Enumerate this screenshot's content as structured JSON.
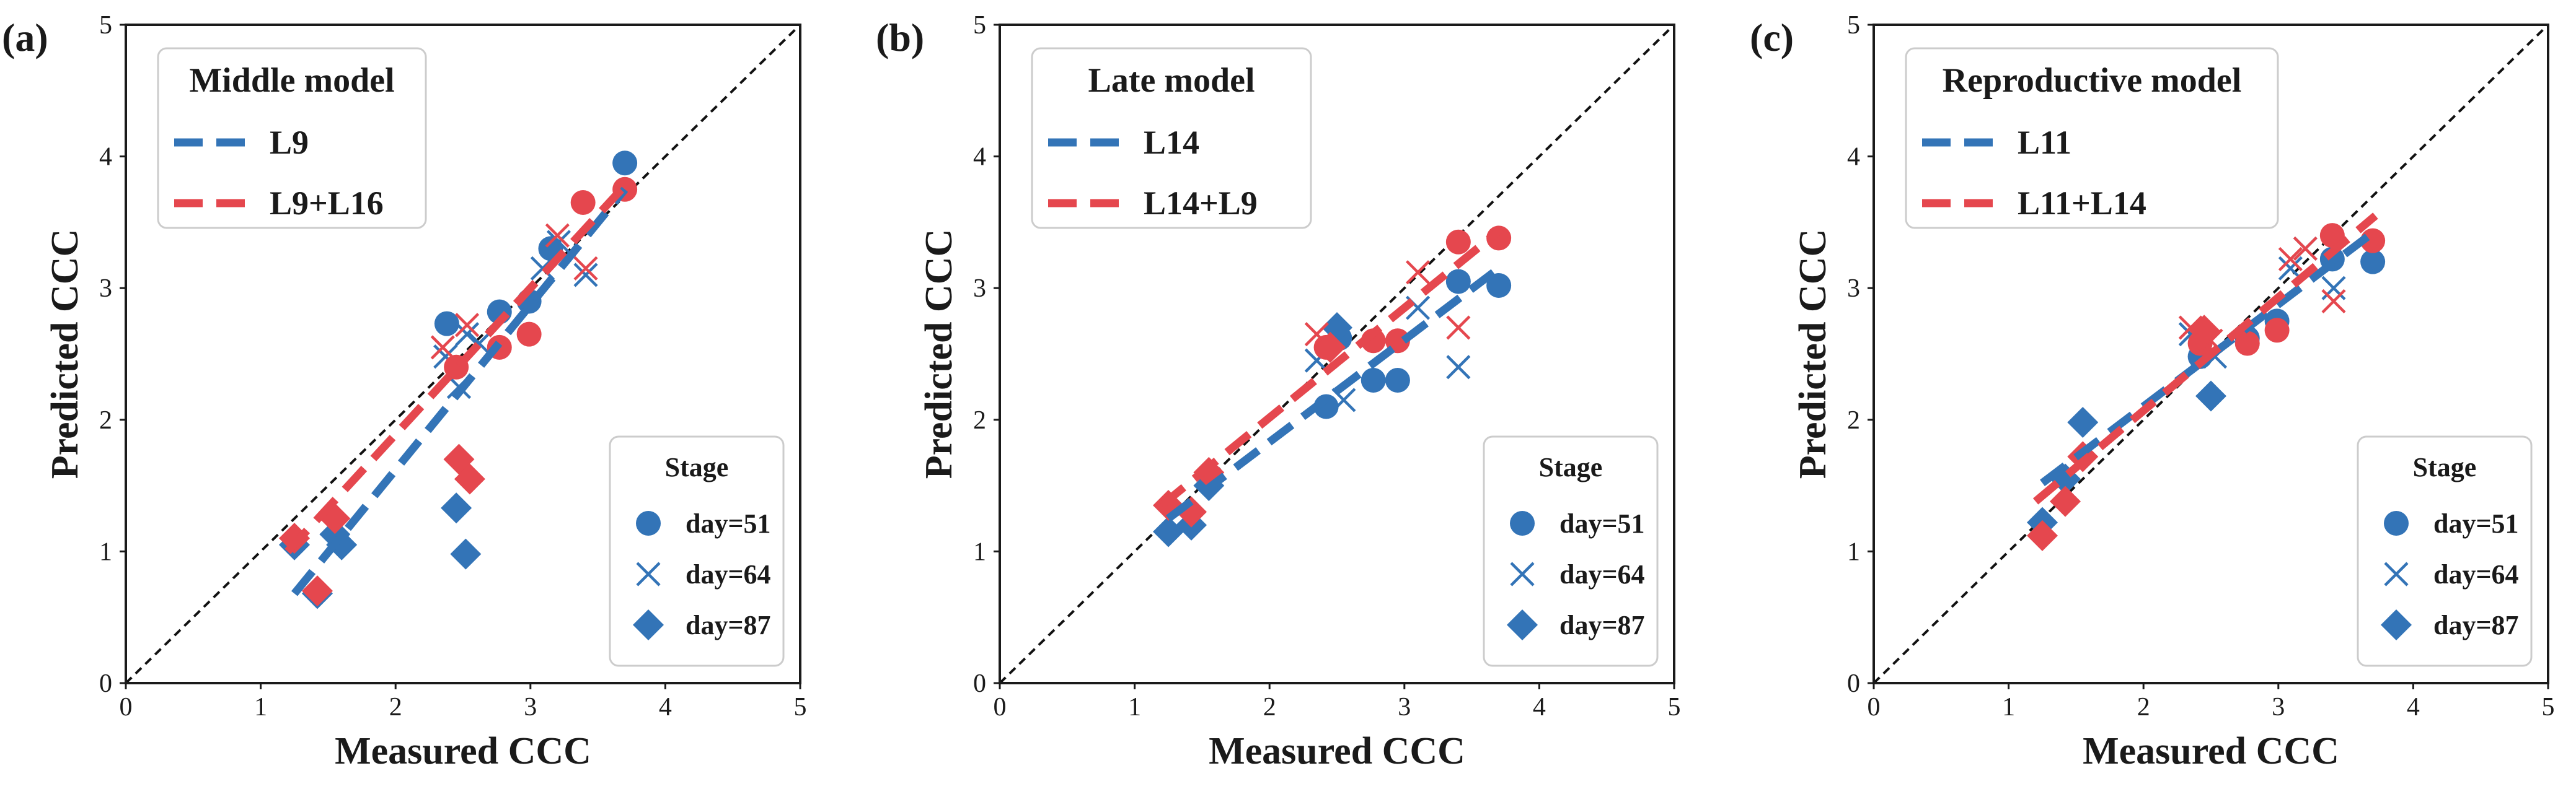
{
  "figure": {
    "colors": {
      "blue": "#3374b7",
      "red": "#e5474e",
      "identity": "#111111"
    },
    "stage_legend": {
      "title": "Stage",
      "entries": [
        "day=51",
        "day=64",
        "day=87"
      ]
    }
  },
  "chart_data": [
    {
      "type": "scatter",
      "panel_label": "(a)",
      "legend_title": "Middle model",
      "xlabel": "Measured CCC",
      "ylabel": "Predicted CCC",
      "xlim": [
        0,
        5
      ],
      "ylim": [
        0,
        5
      ],
      "xticks": [
        "0",
        "1",
        "2",
        "3",
        "4",
        "5"
      ],
      "yticks": [
        "0",
        "1",
        "2",
        "3",
        "4",
        "5"
      ],
      "identity_line": true,
      "series": [
        {
          "name": "L9",
          "color": "#3374b7",
          "fit_line": [
            [
              1.25,
              0.68
            ],
            [
              3.7,
              3.75
            ]
          ],
          "points": {
            "day=51": [
              [
                2.38,
                2.73
              ],
              [
                2.77,
                2.82
              ],
              [
                2.99,
                2.9
              ],
              [
                3.15,
                3.3
              ],
              [
                3.7,
                3.95
              ]
            ],
            "day=64": [
              [
                2.37,
                2.48
              ],
              [
                2.47,
                2.25
              ],
              [
                2.53,
                2.65
              ],
              [
                2.62,
                2.58
              ],
              [
                3.09,
                3.15
              ],
              [
                3.21,
                3.35
              ],
              [
                3.41,
                3.1
              ]
            ],
            "day=87": [
              [
                1.25,
                1.05
              ],
              [
                1.42,
                0.68
              ],
              [
                1.55,
                1.13
              ],
              [
                1.6,
                1.05
              ],
              [
                2.45,
                1.33
              ],
              [
                2.52,
                0.98
              ]
            ]
          }
        },
        {
          "name": "L9+L16",
          "color": "#e5474e",
          "fit_line": [
            [
              1.2,
              1.0
            ],
            [
              3.72,
              3.8
            ]
          ],
          "points": {
            "day=51": [
              [
                2.45,
                2.4
              ],
              [
                2.77,
                2.55
              ],
              [
                2.99,
                2.65
              ],
              [
                3.39,
                3.65
              ],
              [
                3.7,
                3.75
              ]
            ],
            "day=64": [
              [
                2.35,
                2.55
              ],
              [
                2.53,
                2.72
              ],
              [
                3.2,
                3.4
              ],
              [
                3.41,
                3.15
              ]
            ],
            "day=87": [
              [
                1.25,
                1.1
              ],
              [
                1.42,
                0.7
              ],
              [
                1.55,
                1.25
              ],
              [
                2.47,
                1.7
              ],
              [
                2.55,
                1.55
              ]
            ]
          }
        }
      ]
    },
    {
      "type": "scatter",
      "panel_label": "(b)",
      "legend_title": "Late model",
      "xlabel": "Measured CCC",
      "ylabel": "Predicted CCC",
      "xlim": [
        0,
        5
      ],
      "ylim": [
        0,
        5
      ],
      "xticks": [
        "0",
        "1",
        "2",
        "3",
        "4",
        "5"
      ],
      "yticks": [
        "0",
        "1",
        "2",
        "3",
        "4",
        "5"
      ],
      "identity_line": true,
      "series": [
        {
          "name": "L14",
          "color": "#3374b7",
          "fit_line": [
            [
              1.25,
              1.25
            ],
            [
              3.7,
              3.15
            ]
          ],
          "points": {
            "day=51": [
              [
                2.42,
                2.1
              ],
              [
                2.52,
                2.62
              ],
              [
                2.77,
                2.3
              ],
              [
                2.95,
                2.3
              ],
              [
                3.4,
                3.05
              ],
              [
                3.7,
                3.02
              ]
            ],
            "day=64": [
              [
                2.35,
                2.45
              ],
              [
                2.55,
                2.15
              ],
              [
                3.1,
                2.85
              ],
              [
                3.4,
                2.4
              ]
            ],
            "day=87": [
              [
                1.25,
                1.15
              ],
              [
                1.42,
                1.2
              ],
              [
                1.55,
                1.5
              ],
              [
                2.5,
                2.7
              ]
            ]
          }
        },
        {
          "name": "L14+L9",
          "color": "#e5474e",
          "fit_line": [
            [
              1.2,
              1.35
            ],
            [
              3.72,
              3.45
            ]
          ],
          "points": {
            "day=51": [
              [
                2.42,
                2.55
              ],
              [
                2.77,
                2.6
              ],
              [
                2.95,
                2.6
              ],
              [
                3.4,
                3.35
              ],
              [
                3.7,
                3.38
              ]
            ],
            "day=64": [
              [
                2.35,
                2.65
              ],
              [
                3.1,
                3.12
              ],
              [
                3.4,
                2.7
              ]
            ],
            "day=87": [
              [
                1.25,
                1.35
              ],
              [
                1.42,
                1.3
              ],
              [
                1.55,
                1.6
              ],
              [
                2.45,
                2.55
              ]
            ]
          }
        }
      ]
    },
    {
      "type": "scatter",
      "panel_label": "(c)",
      "legend_title": "Reproductive model",
      "xlabel": "Measured CCC",
      "ylabel": "Predicted CCC",
      "xlim": [
        0,
        5
      ],
      "ylim": [
        0,
        5
      ],
      "xticks": [
        "0",
        "1",
        "2",
        "3",
        "4",
        "5"
      ],
      "yticks": [
        "0",
        "1",
        "2",
        "3",
        "4",
        "5"
      ],
      "identity_line": true,
      "series": [
        {
          "name": "L11",
          "color": "#3374b7",
          "fit_line": [
            [
              1.25,
              1.52
            ],
            [
              3.7,
              3.42
            ]
          ],
          "points": {
            "day=51": [
              [
                2.42,
                2.48
              ],
              [
                2.77,
                2.62
              ],
              [
                2.99,
                2.75
              ],
              [
                3.4,
                3.22
              ],
              [
                3.7,
                3.2
              ]
            ],
            "day=64": [
              [
                2.35,
                2.65
              ],
              [
                2.53,
                2.48
              ],
              [
                3.09,
                3.15
              ],
              [
                3.2,
                3.3
              ],
              [
                3.41,
                3.0
              ]
            ],
            "day=87": [
              [
                1.25,
                1.22
              ],
              [
                1.42,
                1.55
              ],
              [
                1.55,
                1.98
              ],
              [
                2.5,
                2.18
              ]
            ]
          }
        },
        {
          "name": "L11+L14",
          "color": "#e5474e",
          "fit_line": [
            [
              1.2,
              1.38
            ],
            [
              3.72,
              3.55
            ]
          ],
          "points": {
            "day=51": [
              [
                2.42,
                2.58
              ],
              [
                2.77,
                2.58
              ],
              [
                2.99,
                2.68
              ],
              [
                3.4,
                3.4
              ],
              [
                3.7,
                3.36
              ]
            ],
            "day=64": [
              [
                2.35,
                2.7
              ],
              [
                2.5,
                2.6
              ],
              [
                3.09,
                3.22
              ],
              [
                3.2,
                3.3
              ],
              [
                3.41,
                2.9
              ]
            ],
            "day=87": [
              [
                1.25,
                1.12
              ],
              [
                1.42,
                1.38
              ],
              [
                1.55,
                1.72
              ],
              [
                2.45,
                2.68
              ]
            ]
          }
        }
      ]
    }
  ]
}
